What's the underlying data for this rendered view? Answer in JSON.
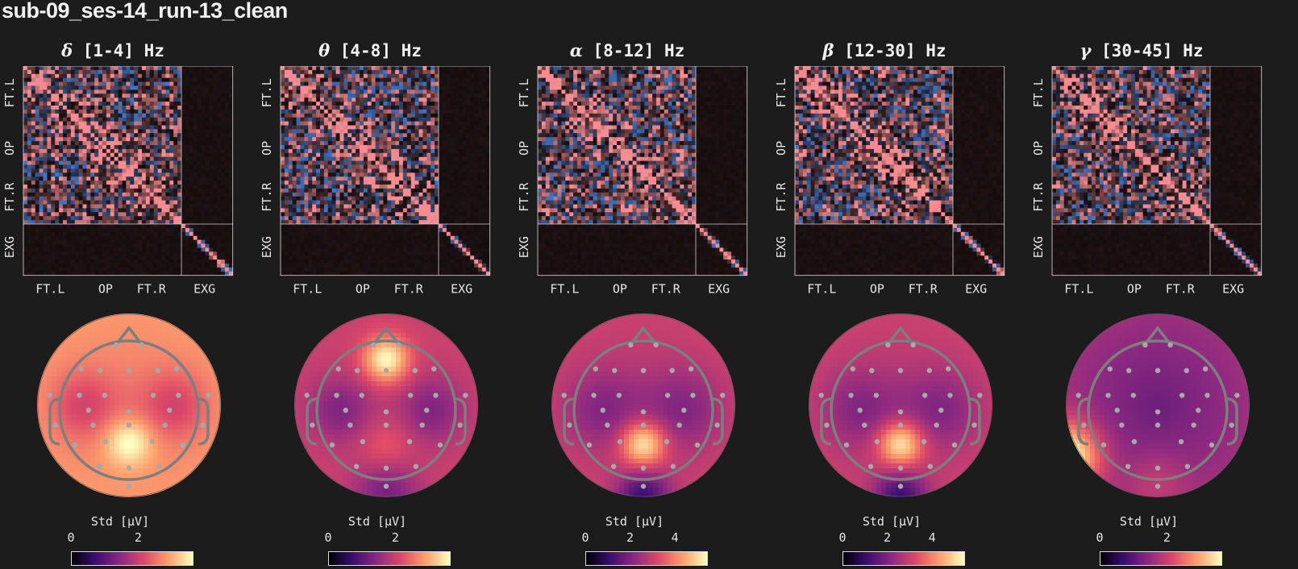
{
  "figure_title": "sub-09_ses-14_run-13_clean",
  "colors": {
    "background": "#1c1c1c",
    "corr_positive": "#f08a8f",
    "corr_negative": "#4a86e0",
    "sensor": "#a8a8a8",
    "head_outline": "#808080"
  },
  "chart_data": [
    {
      "type": "heatmap",
      "title_symbol": "δ",
      "title_range": "[1-4] Hz",
      "matrix_xticks": [
        "FT.L",
        "OP",
        "FT.R",
        "EXG"
      ],
      "matrix_yticks": [
        "FT.L",
        "OP",
        "FT.R",
        "EXG"
      ],
      "topomap_channel_count": 29,
      "colorbar_label": "Std [μV]",
      "colorbar_ticks": [
        "0",
        "2"
      ],
      "colorbar_range": [
        0,
        3.6
      ],
      "peak_region": "central-posterior",
      "seed": 11
    },
    {
      "type": "heatmap",
      "title_symbol": "θ",
      "title_range": "[4-8] Hz",
      "matrix_xticks": [
        "FT.L",
        "OP",
        "FT.R",
        "EXG"
      ],
      "matrix_yticks": [
        "FT.L",
        "OP",
        "FT.R",
        "EXG"
      ],
      "topomap_channel_count": 29,
      "colorbar_label": "Std [μV]",
      "colorbar_ticks": [
        "0",
        "2"
      ],
      "colorbar_range": [
        0,
        3.6
      ],
      "peak_region": "frontal",
      "seed": 23
    },
    {
      "type": "heatmap",
      "title_symbol": "α",
      "title_range": "[8-12] Hz",
      "matrix_xticks": [
        "FT.L",
        "OP",
        "FT.R",
        "EXG"
      ],
      "matrix_yticks": [
        "FT.L",
        "OP",
        "FT.R",
        "EXG"
      ],
      "topomap_channel_count": 29,
      "colorbar_label": "Std [μV]",
      "colorbar_ticks": [
        "0",
        "2",
        "4"
      ],
      "colorbar_range": [
        0,
        5.4
      ],
      "peak_region": "posterior",
      "seed": 37
    },
    {
      "type": "heatmap",
      "title_symbol": "β",
      "title_range": "[12-30] Hz",
      "matrix_xticks": [
        "FT.L",
        "OP",
        "FT.R",
        "EXG"
      ],
      "matrix_yticks": [
        "FT.L",
        "OP",
        "FT.R",
        "EXG"
      ],
      "topomap_channel_count": 29,
      "colorbar_label": "Std [μV]",
      "colorbar_ticks": [
        "0",
        "2",
        "4"
      ],
      "colorbar_range": [
        0,
        5.4
      ],
      "peak_region": "posterior",
      "seed": 41
    },
    {
      "type": "heatmap",
      "title_symbol": "γ",
      "title_range": "[30-45] Hz",
      "matrix_xticks": [
        "FT.L",
        "OP",
        "FT.R",
        "EXG"
      ],
      "matrix_yticks": [
        "FT.L",
        "OP",
        "FT.R",
        "EXG"
      ],
      "topomap_channel_count": 29,
      "colorbar_label": "Std [μV]",
      "colorbar_ticks": [
        "0",
        "2"
      ],
      "colorbar_range": [
        0,
        3.6
      ],
      "peak_region": "left-temporal",
      "seed": 53
    }
  ]
}
